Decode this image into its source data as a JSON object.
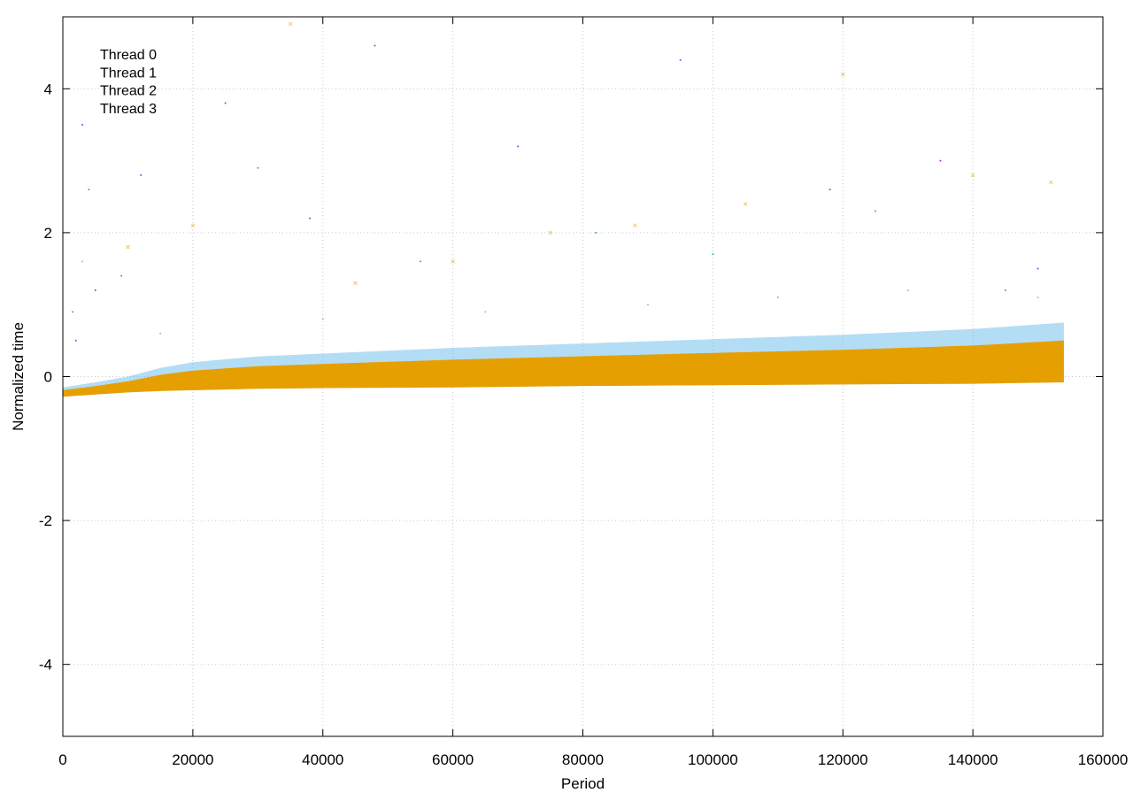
{
  "chart_data": {
    "type": "scatter",
    "title": "",
    "xlabel": "Period",
    "ylabel": "Normalized time",
    "xlim": [
      0,
      160000
    ],
    "ylim": [
      -5,
      5
    ],
    "xticks": [
      0,
      20000,
      40000,
      60000,
      80000,
      100000,
      120000,
      140000,
      160000
    ],
    "yticks": [
      -4,
      -2,
      0,
      2,
      4
    ],
    "xtick_labels": [
      "0",
      "20000",
      "40000",
      "60000",
      "80000",
      "100000",
      "120000",
      "140000",
      "160000"
    ],
    "ytick_labels": [
      "-4",
      "-2",
      "0",
      "2",
      "4"
    ],
    "grid": true,
    "legend_position": "top-left",
    "x_max_data": 154000,
    "series": [
      {
        "name": "Thread 0",
        "color": "#9400d3",
        "marker": "dot",
        "points": [
          [
            2000,
            0.5
          ],
          [
            3000,
            3.5
          ],
          [
            5000,
            1.2
          ],
          [
            12000,
            2.8
          ],
          [
            25000,
            3.8
          ],
          [
            38000,
            2.2
          ],
          [
            48000,
            4.6
          ],
          [
            70000,
            3.2
          ],
          [
            95000,
            4.4
          ],
          [
            118000,
            2.6
          ],
          [
            135000,
            3.0
          ],
          [
            150000,
            1.5
          ]
        ]
      },
      {
        "name": "Thread 1",
        "color": "#009e73",
        "marker": "dot",
        "points": [
          [
            1500,
            0.9
          ],
          [
            4000,
            2.6
          ],
          [
            9000,
            1.4
          ],
          [
            30000,
            2.9
          ],
          [
            55000,
            1.6
          ],
          [
            82000,
            2.0
          ],
          [
            100000,
            1.7
          ],
          [
            125000,
            2.3
          ],
          [
            145000,
            1.2
          ]
        ]
      },
      {
        "name": "Thread 2",
        "color": "#56b4e9",
        "marker": "dot",
        "points": [
          [
            3000,
            1.6
          ],
          [
            15000,
            0.6
          ],
          [
            40000,
            0.8
          ],
          [
            65000,
            0.9
          ],
          [
            90000,
            1.0
          ],
          [
            110000,
            1.1
          ],
          [
            130000,
            1.2
          ],
          [
            150000,
            1.1
          ]
        ]
      },
      {
        "name": "Thread 3",
        "color": "#e69f00",
        "marker": "cross",
        "points": [
          [
            10000,
            1.8
          ],
          [
            20000,
            2.1
          ],
          [
            35000,
            4.9
          ],
          [
            45000,
            1.3
          ],
          [
            60000,
            1.6
          ],
          [
            75000,
            2.0
          ],
          [
            88000,
            2.1
          ],
          [
            105000,
            2.4
          ],
          [
            120000,
            4.2
          ],
          [
            140000,
            2.8
          ],
          [
            152000,
            2.7
          ]
        ]
      }
    ],
    "trend": {
      "x": [
        0,
        5000,
        10000,
        15000,
        20000,
        30000,
        40000,
        60000,
        80000,
        100000,
        120000,
        140000,
        154000
      ],
      "lower": [
        -0.28,
        -0.25,
        -0.22,
        -0.2,
        -0.19,
        -0.17,
        -0.16,
        -0.15,
        -0.13,
        -0.12,
        -0.11,
        -0.1,
        -0.08
      ],
      "upper": [
        -0.15,
        -0.08,
        0.0,
        0.12,
        0.2,
        0.28,
        0.32,
        0.4,
        0.46,
        0.52,
        0.58,
        0.66,
        0.75
      ]
    }
  }
}
